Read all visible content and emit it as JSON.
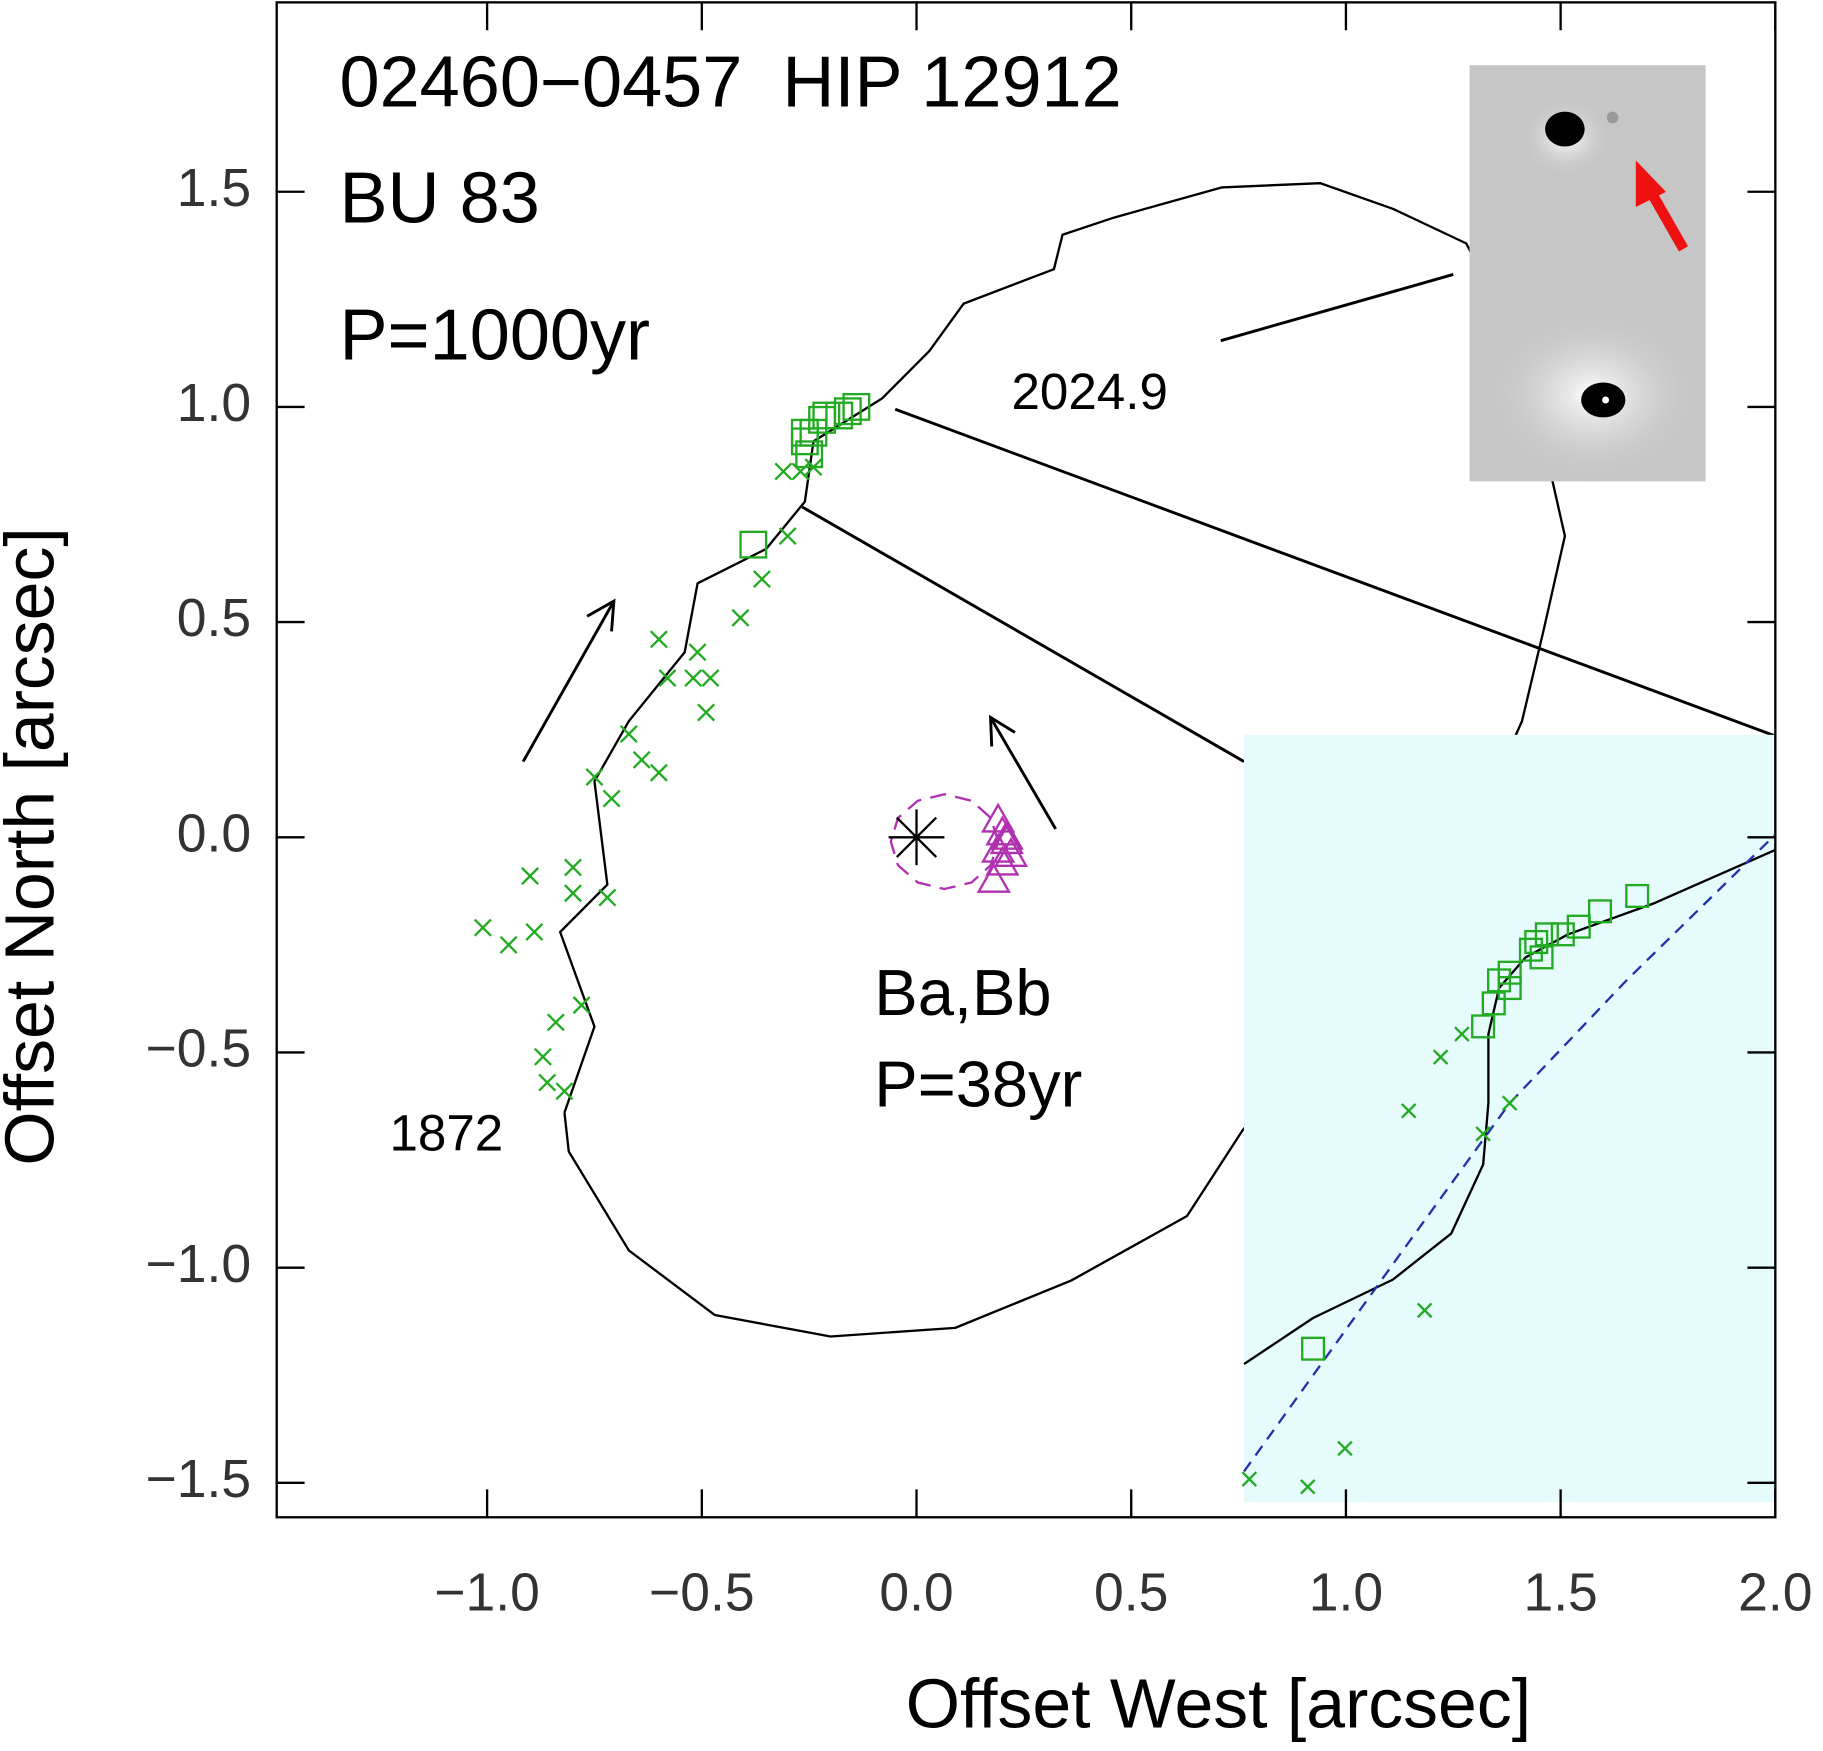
{
  "chart_data": [
    {
      "type": "scatter",
      "title_lines": [
        "02460−0457  HIP 12912",
        "BU 83",
        "P=1000yr"
      ],
      "xlabel": "Offset West [arcsec]",
      "ylabel": "Offset North [arcsec]",
      "annotations": [
        "2024.9",
        "1872",
        "Ba,Bb",
        "P=38yr"
      ],
      "xlim": [
        -1.49,
        2.0
      ],
      "ylim": [
        -1.58,
        1.94
      ],
      "xticks": [
        {
          "value": -1.0,
          "label": "−1.0"
        },
        {
          "value": -0.5,
          "label": "−0.5"
        },
        {
          "value": 0.0,
          "label": "0.0"
        },
        0.5,
        {
          "value": 1.0,
          "label": "1.0"
        },
        1.5,
        {
          "value": 2.0,
          "label": "2.0"
        }
      ],
      "yticks": [
        {
          "value": -1.5,
          "label": "−1.5"
        },
        {
          "value": -1.0,
          "label": "−1.0"
        },
        {
          "value": -0.5,
          "label": "−0.5"
        },
        {
          "value": 0.0,
          "label": "0.0"
        },
        0.5,
        {
          "value": 1.0,
          "label": "1.0"
        },
        1.5
      ],
      "orbit": {
        "color": "#000000",
        "x": [
          -0.82,
          -0.75,
          -0.83,
          -0.72,
          -0.75,
          -0.67,
          -0.54,
          -0.51,
          -0.35,
          -0.26,
          -0.24,
          -0.08,
          0.03,
          0.11,
          0.32,
          0.34,
          0.46,
          0.71,
          0.94,
          1.11,
          1.28,
          1.38,
          1.46,
          1.51,
          1.46,
          1.41,
          1.2,
          0.76,
          0.63,
          0.36,
          0.09,
          -0.2,
          -0.47,
          -0.67,
          -0.81,
          -0.82
        ],
        "y": [
          -0.64,
          -0.44,
          -0.22,
          -0.11,
          0.13,
          0.27,
          0.43,
          0.59,
          0.67,
          0.78,
          0.92,
          1.02,
          1.13,
          1.24,
          1.32,
          1.4,
          1.44,
          1.51,
          1.52,
          1.46,
          1.38,
          1.19,
          0.92,
          0.7,
          0.48,
          0.27,
          -0.2,
          -0.68,
          -0.88,
          -1.03,
          -1.14,
          -1.16,
          -1.11,
          -0.96,
          -0.73,
          -0.64
        ]
      },
      "inner_orbit": {
        "color": "#b030b0",
        "x": [
          0.19,
          0.173,
          0.128,
          0.065,
          0.003,
          -0.043,
          -0.06,
          -0.043,
          0.003,
          0.065,
          0.128,
          0.173,
          0.19
        ],
        "y": [
          -0.01,
          0.045,
          0.085,
          0.1,
          0.085,
          0.045,
          -0.01,
          -0.065,
          -0.105,
          -0.12,
          -0.105,
          -0.065,
          -0.01
        ]
      },
      "series": [
        {
          "marker": "x",
          "color": "#22aa22",
          "x": [
            -1.01,
            -0.95,
            -0.89,
            -0.9,
            -0.8,
            -0.72,
            -0.84,
            -0.87,
            -0.86,
            -0.82,
            -0.78,
            -0.8,
            -0.75,
            -0.71,
            -0.67,
            -0.64,
            -0.6,
            -0.6,
            -0.58,
            -0.52,
            -0.51,
            -0.48,
            -0.49,
            -0.41,
            -0.36,
            -0.3,
            -0.31,
            -0.27,
            -0.24
          ],
          "y": [
            -0.21,
            -0.25,
            -0.22,
            -0.09,
            -0.07,
            -0.14,
            -0.43,
            -0.51,
            -0.57,
            -0.59,
            -0.39,
            -0.13,
            0.14,
            0.09,
            0.24,
            0.18,
            0.15,
            0.46,
            0.37,
            0.37,
            0.43,
            0.37,
            0.29,
            0.51,
            0.6,
            0.7,
            0.85,
            0.85,
            0.86
          ]
        },
        {
          "marker": "square",
          "color": "#22aa22",
          "x": [
            -0.38,
            -0.26,
            -0.24,
            -0.22,
            -0.21,
            -0.18,
            -0.16,
            -0.14,
            -0.26,
            -0.25
          ],
          "y": [
            0.68,
            0.92,
            0.94,
            0.97,
            0.98,
            0.98,
            0.99,
            1.0,
            0.94,
            0.89
          ]
        },
        {
          "marker": "triangle",
          "color": "#b030b0",
          "x": [
            0.19,
            0.2,
            0.21,
            0.19,
            0.22,
            0.2,
            0.18,
            0.21
          ],
          "y": [
            0.04,
            0.01,
            -0.01,
            -0.03,
            -0.04,
            -0.06,
            -0.1,
            0.0
          ]
        },
        {
          "marker": "asterisk",
          "color": "#000000",
          "x": [
            0.0
          ],
          "y": [
            0.0
          ]
        }
      ]
    },
    {
      "type": "scatter",
      "background": "#e6fcfc",
      "xlim": [
        0,
        1
      ],
      "ylim": [
        0,
        1
      ],
      "orbit": {
        "color": "#000000",
        "x": [
          0,
          0.13,
          0.28,
          0.39,
          0.45,
          0.46,
          0.46,
          0.48,
          0.53,
          0.61,
          0.77,
          1
        ],
        "y": [
          0.18,
          0.24,
          0.29,
          0.35,
          0.44,
          0.52,
          0.61,
          0.67,
          0.71,
          0.74,
          0.78,
          0.85
        ]
      },
      "fit": {
        "color": "#2233aa",
        "x": [
          0,
          0.28,
          0.5,
          0.72,
          1
        ],
        "y": [
          0.04,
          0.31,
          0.52,
          0.68,
          0.87
        ]
      },
      "series": [
        {
          "marker": "x",
          "color": "#22aa22",
          "x": [
            0.01,
            0.12,
            0.19,
            0.34,
            0.31,
            0.37,
            0.41,
            0.5,
            0.45
          ],
          "y": [
            0.03,
            0.02,
            0.07,
            0.25,
            0.51,
            0.58,
            0.61,
            0.52,
            0.48
          ]
        },
        {
          "marker": "square",
          "color": "#22aa22",
          "x": [
            0.13,
            0.45,
            0.47,
            0.48,
            0.5,
            0.54,
            0.55,
            0.57,
            0.6,
            0.63,
            0.67,
            0.74,
            0.56,
            0.5
          ],
          "y": [
            0.2,
            0.62,
            0.65,
            0.68,
            0.69,
            0.72,
            0.73,
            0.74,
            0.74,
            0.75,
            0.77,
            0.79,
            0.71,
            0.67
          ]
        }
      ]
    }
  ]
}
